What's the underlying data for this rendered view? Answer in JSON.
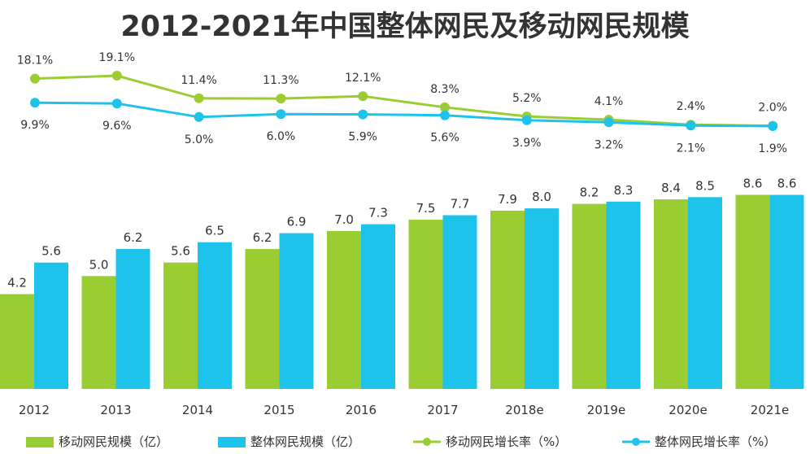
{
  "chart_data": {
    "type": "bar",
    "title": "2012-2021年中国整体网民及移动网民规模",
    "categories": [
      "2012",
      "2013",
      "2014",
      "2015",
      "2016",
      "2017",
      "2018e",
      "2019e",
      "2020e",
      "2021e"
    ],
    "series": [
      {
        "name": "移动网民规模（亿）",
        "type": "bar",
        "color": "#9ACD32",
        "values": [
          4.2,
          5.0,
          5.6,
          6.2,
          7.0,
          7.5,
          7.9,
          8.2,
          8.4,
          8.6
        ],
        "value_labels": [
          "4.2",
          "5.0",
          "5.6",
          "6.2",
          "7.0",
          "7.5",
          "7.9",
          "8.2",
          "8.4",
          "8.6"
        ]
      },
      {
        "name": "整体网民规模（亿）",
        "type": "bar",
        "color": "#1EC3EC",
        "values": [
          5.6,
          6.2,
          6.5,
          6.9,
          7.3,
          7.7,
          8.0,
          8.3,
          8.5,
          8.6
        ],
        "value_labels": [
          "5.6",
          "6.2",
          "6.5",
          "6.9",
          "7.3",
          "7.7",
          "8.0",
          "8.3",
          "8.5",
          "8.6"
        ]
      },
      {
        "name": "移动网民增长率（%）",
        "type": "line",
        "color": "#9ACD32",
        "values": [
          18.1,
          19.1,
          11.4,
          11.3,
          12.1,
          8.3,
          5.2,
          4.1,
          2.4,
          2.0
        ],
        "value_labels": [
          "18.1%",
          "19.1%",
          "11.4%",
          "11.3%",
          "12.1%",
          "8.3%",
          "5.2%",
          "4.1%",
          "2.4%",
          "2.0%"
        ]
      },
      {
        "name": "整体网民增长率（%）",
        "type": "line",
        "color": "#1EC3EC",
        "values": [
          9.9,
          9.6,
          5.0,
          6.0,
          5.9,
          5.6,
          3.9,
          3.2,
          2.1,
          1.9
        ],
        "value_labels": [
          "9.9%",
          "9.6%",
          "5.0%",
          "6.0%",
          "5.9%",
          "5.6%",
          "3.9%",
          "3.2%",
          "2.1%",
          "1.9%"
        ]
      }
    ],
    "bar_ylim": [
      0,
      10
    ],
    "line_ylim": [
      0,
      20
    ],
    "grid": false,
    "legend": "bottom"
  }
}
